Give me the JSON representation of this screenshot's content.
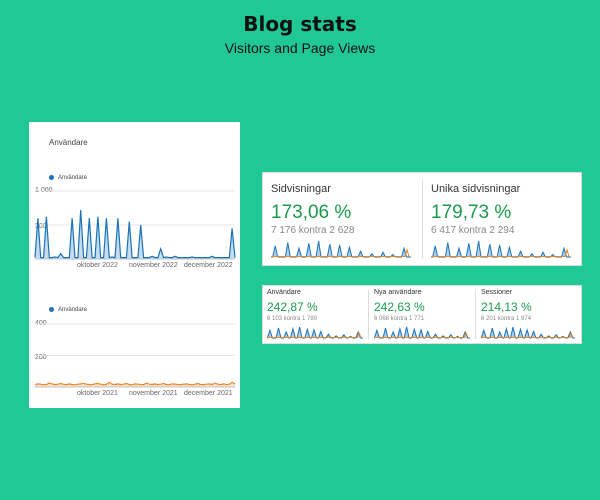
{
  "header": {
    "title": "Blog stats",
    "subtitle": "Visitors and Page Views"
  },
  "left_panel": {
    "title": "Användare",
    "legend_2022": "Användare",
    "legend_2021": "Användare",
    "yticks_2022": [
      "1 000",
      "500"
    ],
    "xticks_2022": [
      "oktober 2022",
      "november 2022",
      "december 2022"
    ],
    "yticks_2021": [
      "400",
      "200"
    ],
    "xticks_2021": [
      "oktober 2021",
      "november 2021",
      "december 2021"
    ]
  },
  "cards_top": [
    {
      "label": "Sidvisningar",
      "value": "173,06 %",
      "sub": "7 176 kontra 2 628"
    },
    {
      "label": "Unika sidvisningar",
      "value": "179,73 %",
      "sub": "6 417 kontra 2 294"
    }
  ],
  "cards_bottom": [
    {
      "label": "Användare",
      "value": "242,87 %",
      "sub": "6 103 kontra 1 780"
    },
    {
      "label": "Nya användare",
      "value": "242,63 %",
      "sub": "6 068 kontra 1 771"
    },
    {
      "label": "Sessioner",
      "value": "214,13 %",
      "sub": "6 201 kontra 1 974"
    }
  ],
  "colors": {
    "background": "#20c896",
    "series_current": "#1a73b8",
    "series_previous": "#e8872a",
    "positive": "#1a9a4a"
  },
  "chart_data": [
    {
      "type": "line",
      "title": "",
      "ylabel": "",
      "ylim": [
        0,
        1000
      ],
      "series": [
        {
          "name": "Användare",
          "values": [
            20,
            600,
            20,
            20,
            620,
            20,
            20,
            30,
            20,
            80,
            20,
            20,
            20,
            600,
            20,
            20,
            720,
            20,
            20,
            600,
            20,
            20,
            620,
            20,
            20,
            600,
            20,
            30,
            20,
            600,
            20,
            20,
            20,
            550,
            20,
            20,
            20,
            500,
            20,
            20,
            20,
            40,
            20,
            20,
            150,
            20,
            30,
            20,
            20,
            40,
            20,
            20,
            20,
            20,
            20,
            30,
            20,
            20,
            20,
            20,
            20,
            20,
            40,
            20,
            20,
            20,
            20,
            20,
            20,
            450,
            20
          ]
        }
      ]
    },
    {
      "type": "line",
      "title": "",
      "ylabel": "",
      "ylim": [
        0,
        400
      ],
      "series": [
        {
          "name": "Användare",
          "values": [
            15,
            20,
            18,
            14,
            16,
            25,
            20,
            15,
            18,
            22,
            17,
            15,
            20,
            16,
            14,
            18,
            20,
            24,
            18,
            16,
            15,
            20,
            22,
            18,
            15,
            17,
            30,
            18,
            16,
            20,
            15,
            18,
            22,
            16,
            14,
            20,
            18,
            16,
            15,
            25,
            18,
            16,
            20,
            15,
            18,
            22,
            16,
            14,
            20,
            18,
            16,
            15,
            18,
            20,
            16,
            14,
            18,
            22,
            16,
            15,
            18,
            20,
            16,
            25,
            18,
            15,
            20,
            16,
            18,
            30,
            20
          ]
        }
      ]
    }
  ]
}
